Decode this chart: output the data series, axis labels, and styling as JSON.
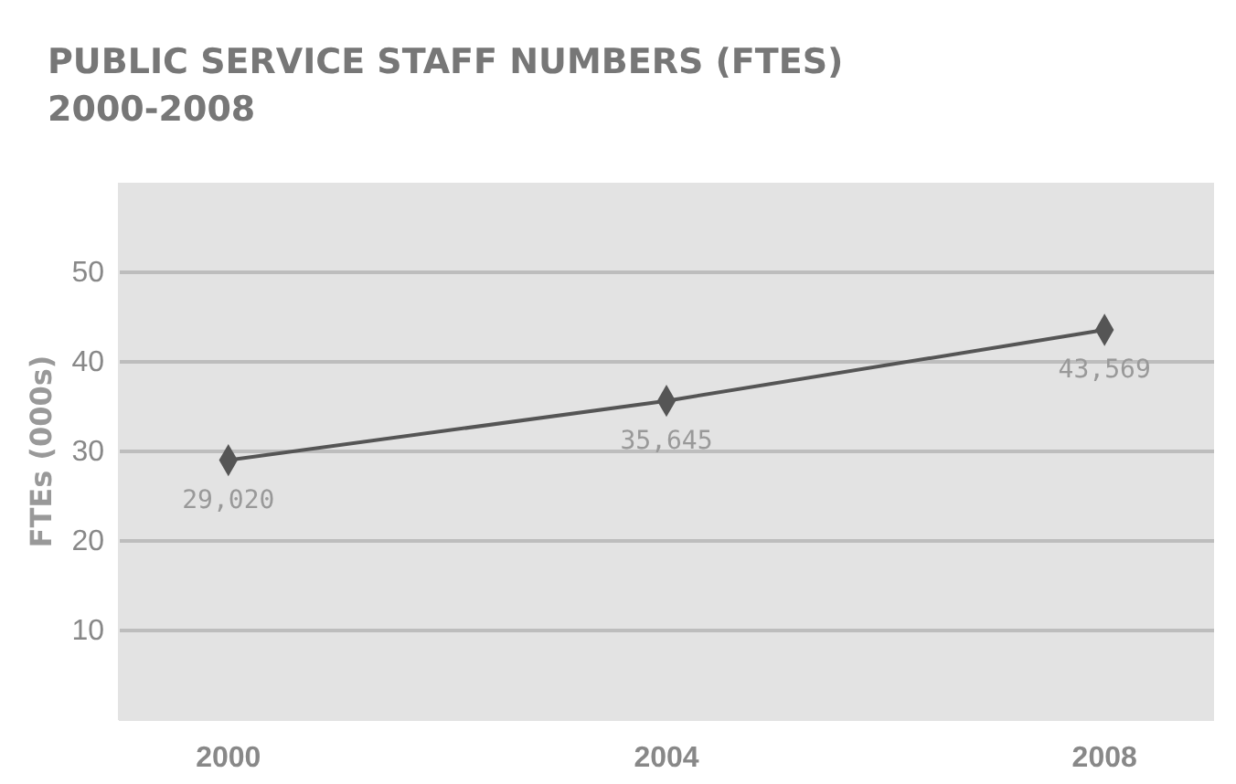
{
  "chart_data": {
    "type": "line",
    "title": "PUBLIC SERVICE STAFF NUMBERS (FTES)",
    "subtitle": "2000-2008",
    "ylabel": "FTEs (000s)",
    "categories": [
      "2000",
      "2004",
      "2008"
    ],
    "series": [
      {
        "color": "#555555",
        "values": [
          29.02,
          35.645,
          43.569
        ]
      }
    ],
    "value_labels": [
      "29,020",
      "35,645",
      "43,569"
    ],
    "ylim": [
      0,
      60
    ],
    "yticks": [
      10,
      20,
      30,
      40,
      50
    ],
    "grid": "y",
    "marker": "diamond",
    "line_style": "solid"
  }
}
